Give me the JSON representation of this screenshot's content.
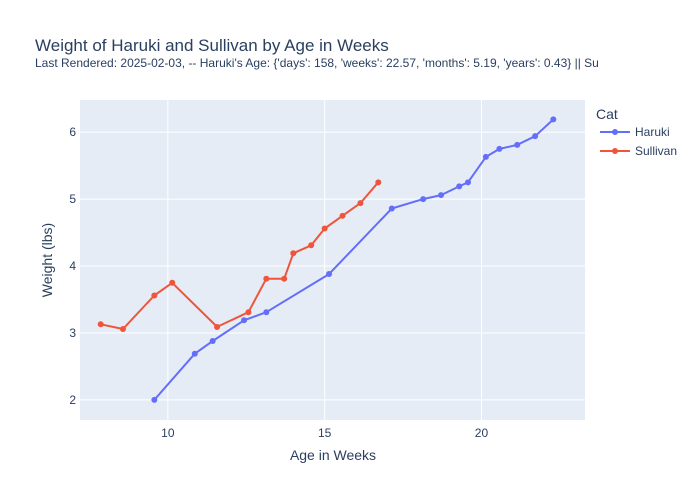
{
  "chart_data": {
    "type": "line",
    "title": "Weight of Haruki and Sullivan by Age in Weeks",
    "subtitle": "Last Rendered: 2025-02-03, -- Haruki's Age: {'days': 158, 'weeks': 22.57, 'months': 5.19, 'years': 0.43} || Su",
    "xlabel": "Age in Weeks",
    "ylabel": "Weight (lbs)",
    "xlim": [
      7.2,
      23.3
    ],
    "ylim": [
      1.7,
      6.48
    ],
    "xticks": [
      10,
      15,
      20
    ],
    "yticks": [
      2,
      3,
      4,
      5,
      6
    ],
    "grid": true,
    "legend_title": "Cat",
    "legend_position": "right",
    "series": [
      {
        "name": "Haruki",
        "color": "#636efa",
        "points": [
          [
            9.57,
            2.0
          ],
          [
            10.86,
            2.69
          ],
          [
            11.43,
            2.88
          ],
          [
            12.43,
            3.19
          ],
          [
            13.14,
            3.31
          ],
          [
            15.14,
            3.88
          ],
          [
            17.14,
            4.86
          ],
          [
            18.14,
            5.0
          ],
          [
            18.71,
            5.06
          ],
          [
            19.29,
            5.19
          ],
          [
            19.57,
            5.25
          ],
          [
            20.14,
            5.63
          ],
          [
            20.57,
            5.75
          ],
          [
            21.14,
            5.81
          ],
          [
            21.71,
            5.94
          ],
          [
            22.29,
            6.19
          ]
        ]
      },
      {
        "name": "Sullivan",
        "color": "#ef553b",
        "points": [
          [
            7.86,
            3.13
          ],
          [
            8.57,
            3.06
          ],
          [
            9.57,
            3.56
          ],
          [
            10.14,
            3.75
          ],
          [
            11.57,
            3.09
          ],
          [
            12.57,
            3.31
          ],
          [
            13.14,
            3.81
          ],
          [
            13.71,
            3.81
          ],
          [
            14.0,
            4.19
          ],
          [
            14.57,
            4.31
          ],
          [
            15.0,
            4.56
          ],
          [
            15.57,
            4.75
          ],
          [
            16.14,
            4.94
          ],
          [
            16.71,
            5.25
          ]
        ]
      }
    ]
  }
}
